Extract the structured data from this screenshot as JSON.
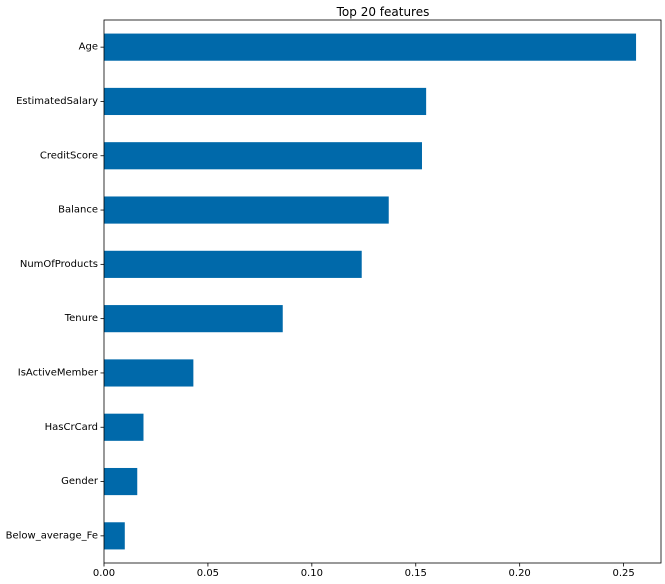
{
  "chart_data": {
    "type": "bar",
    "orientation": "horizontal",
    "title": "Top 20 features",
    "xlabel": "",
    "ylabel": "",
    "categories": [
      "Age",
      "EstimatedSalary",
      "CreditScore",
      "Balance",
      "NumOfProducts",
      "Tenure",
      "IsActiveMember",
      "HasCrCard",
      "Gender",
      "Below_average_Fe"
    ],
    "values": [
      0.256,
      0.155,
      0.153,
      0.137,
      0.124,
      0.086,
      0.043,
      0.019,
      0.016,
      0.01
    ],
    "xlim": [
      0,
      0.268
    ],
    "xticks": [
      0.0,
      0.05,
      0.1,
      0.15,
      0.2,
      0.25
    ],
    "xtick_labels": [
      "0.00",
      "0.05",
      "0.10",
      "0.15",
      "0.20",
      "0.25"
    ],
    "grid": false,
    "legend": "none",
    "bar_color": "#0069aa"
  }
}
